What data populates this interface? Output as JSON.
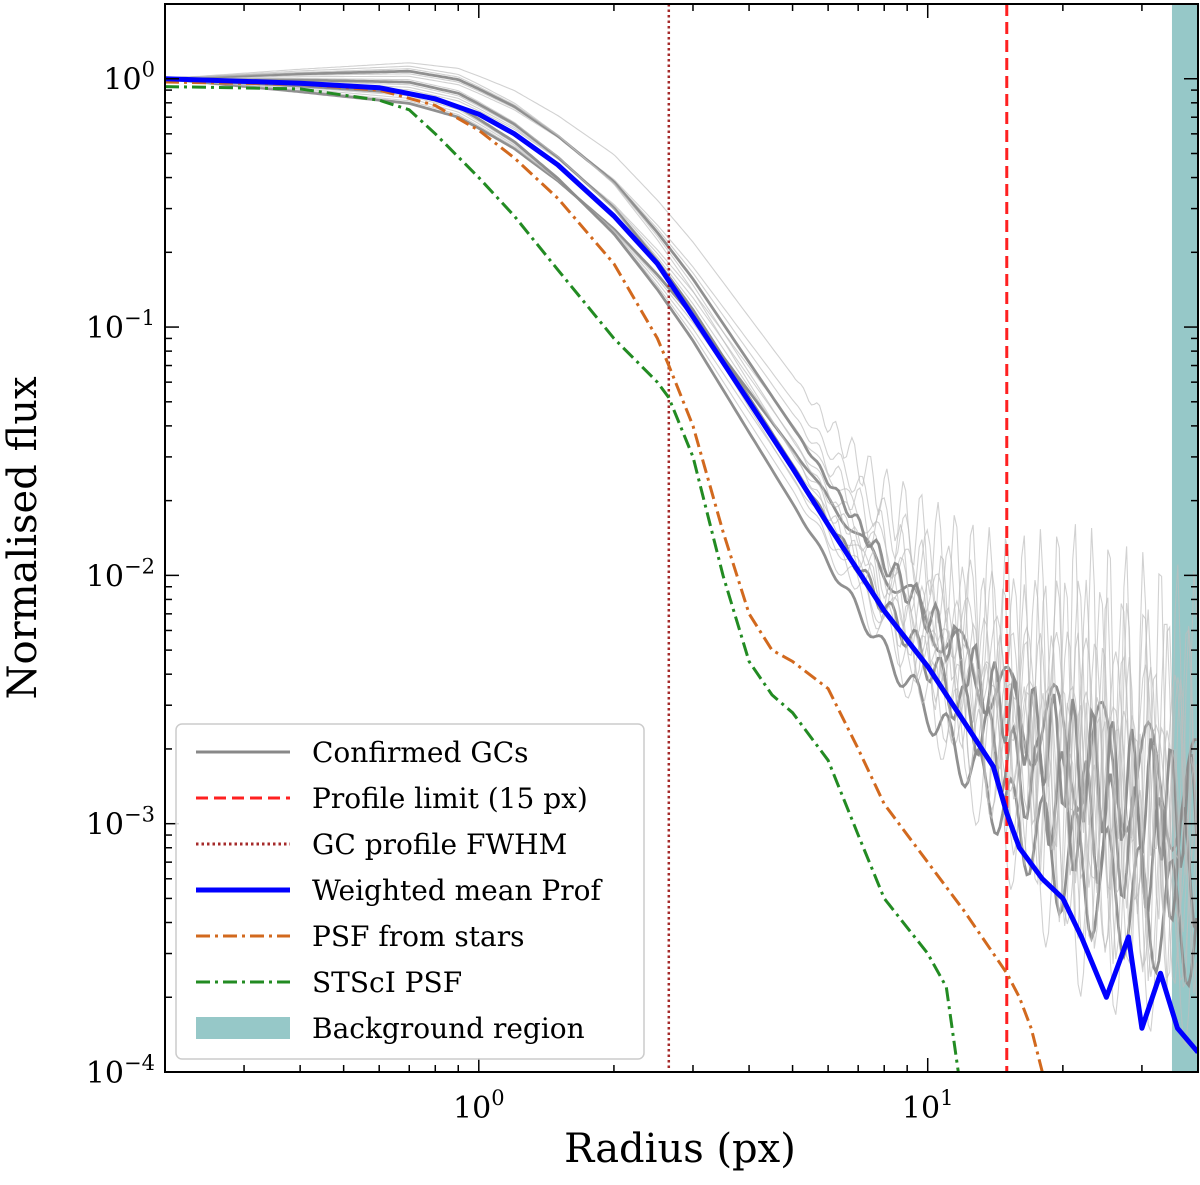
{
  "chart_data": {
    "type": "line",
    "title": "",
    "xlabel": "Radius (px)",
    "ylabel": "Normalised flux",
    "xscale": "log",
    "yscale": "log",
    "xlim": [
      0.2,
      40
    ],
    "ylim": [
      0.0001,
      2
    ],
    "grid": false,
    "legend_position": "lower-left",
    "x_ticks": [
      {
        "value": 1,
        "label": "10",
        "exp": "0"
      },
      {
        "value": 10,
        "label": "10",
        "exp": "1"
      }
    ],
    "y_ticks": [
      {
        "value": 1,
        "label": "10",
        "exp": "0"
      },
      {
        "value": 0.1,
        "label": "10",
        "exp": "−1"
      },
      {
        "value": 0.01,
        "label": "10",
        "exp": "−2"
      },
      {
        "value": 0.001,
        "label": "10",
        "exp": "−3"
      },
      {
        "value": 0.0001,
        "label": "10",
        "exp": "−4"
      }
    ],
    "background_region": {
      "name": "Background region",
      "x_range": [
        35,
        40
      ],
      "color": "#96c8c8"
    },
    "vlines": [
      {
        "name": "Profile limit (15 px)",
        "x": 15,
        "color": "#ff2020",
        "style": "dashed"
      },
      {
        "name": "GC profile FWHM",
        "x": 2.65,
        "color": "#a52a2a",
        "style": "dotted"
      }
    ],
    "series": [
      {
        "name": "Confirmed GCs",
        "color": "#888888",
        "style": "solid",
        "x": [
          0.2,
          0.4,
          0.7,
          0.9,
          1.0,
          1.2,
          1.5,
          2.0,
          2.5,
          3.0,
          4.0,
          5.0,
          6.0,
          8.0,
          10,
          12,
          15,
          20,
          25,
          30,
          40
        ],
        "y": [
          1.0,
          0.99,
          0.97,
          0.88,
          0.8,
          0.67,
          0.5,
          0.32,
          0.2,
          0.13,
          0.06,
          0.033,
          0.02,
          0.0095,
          0.0058,
          0.0038,
          0.0024,
          0.0016,
          0.0013,
          0.0011,
          0.0009
        ]
      },
      {
        "name": "Weighted mean Prof",
        "color": "#0000ff",
        "style": "solid",
        "x": [
          0.2,
          0.4,
          0.6,
          0.8,
          1.0,
          1.2,
          1.5,
          2.0,
          2.5,
          3.0,
          4.0,
          5.0,
          6.0,
          8.0,
          10,
          12,
          14,
          15,
          16,
          18,
          20,
          22,
          25,
          28,
          30,
          33,
          36,
          40
        ],
        "y": [
          1.0,
          0.96,
          0.92,
          0.83,
          0.72,
          0.6,
          0.45,
          0.28,
          0.18,
          0.11,
          0.05,
          0.027,
          0.016,
          0.0072,
          0.0043,
          0.0026,
          0.0017,
          0.0011,
          0.0008,
          0.0006,
          0.0005,
          0.00035,
          0.0002,
          0.00035,
          0.00015,
          0.00025,
          0.00015,
          0.00012
        ]
      },
      {
        "name": "PSF from stars",
        "color": "#d2691e",
        "style": "dashdot",
        "x": [
          0.2,
          0.4,
          0.6,
          0.8,
          1.0,
          1.2,
          1.5,
          2.0,
          2.5,
          2.65,
          3.0,
          3.5,
          4.0,
          4.5,
          5.0,
          6.0,
          7.0,
          8.0,
          10,
          12,
          14,
          15,
          16,
          17,
          18
        ],
        "y": [
          0.97,
          0.95,
          0.9,
          0.78,
          0.62,
          0.48,
          0.33,
          0.18,
          0.09,
          0.07,
          0.04,
          0.015,
          0.007,
          0.005,
          0.0045,
          0.0035,
          0.002,
          0.0012,
          0.0007,
          0.00045,
          0.0003,
          0.00025,
          0.0002,
          0.00015,
          0.0001
        ]
      },
      {
        "name": "STScI PSF",
        "color": "#228b22",
        "style": "dashdot",
        "x": [
          0.2,
          0.4,
          0.6,
          0.7,
          0.8,
          1.0,
          1.2,
          1.5,
          2.0,
          2.5,
          2.65,
          3.0,
          3.5,
          4.0,
          4.5,
          5.0,
          6.0,
          7.0,
          8.0,
          10,
          11,
          11.7
        ],
        "y": [
          0.93,
          0.91,
          0.82,
          0.75,
          0.6,
          0.4,
          0.28,
          0.17,
          0.09,
          0.06,
          0.052,
          0.03,
          0.01,
          0.0045,
          0.0033,
          0.0028,
          0.0018,
          0.0009,
          0.0005,
          0.0003,
          0.00022,
          0.0001
        ]
      }
    ]
  }
}
